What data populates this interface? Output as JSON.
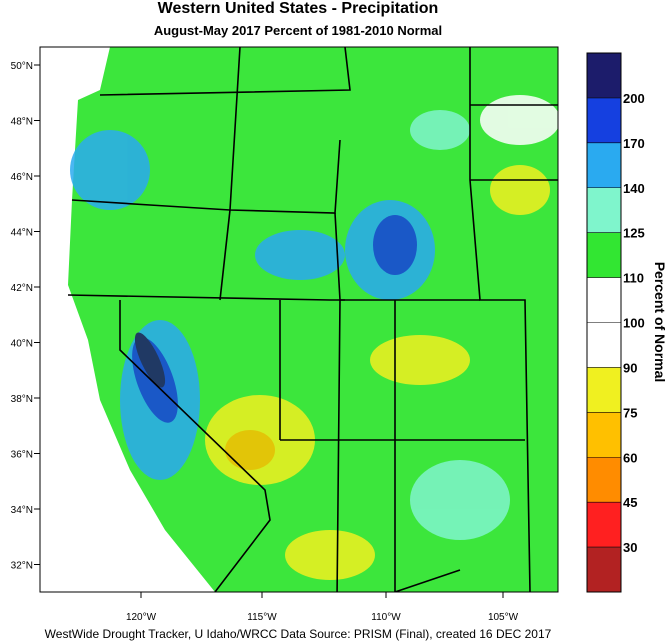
{
  "title": "Western United States - Precipitation",
  "subtitle": "August-May 2017  Percent of 1981-2010 Normal",
  "latitude_labels": [
    "50°N",
    "48°N",
    "46°N",
    "44°N",
    "42°N",
    "40°N",
    "38°N",
    "36°N",
    "34°N",
    "32°N"
  ],
  "longitude_labels": [
    "120°W",
    "115°W",
    "110°W",
    "105°W"
  ],
  "colorbar": {
    "title": "Percent of Normal",
    "levels": [
      200,
      170,
      140,
      125,
      110,
      100,
      90,
      75,
      60,
      45,
      30
    ],
    "colors": [
      "#1c1c6b",
      "#1540e0",
      "#2aaaf0",
      "#7ff5cc",
      "#32e632",
      "#ffffff",
      "#ffffff",
      "#f0f020",
      "#ffc000",
      "#ff8c00",
      "#ff2020",
      "#b22222"
    ]
  },
  "footer": "WestWide Drought Tracker, U Idaho/WRCC Data Source: PRISM (Final), created 16 DEC 2017"
}
